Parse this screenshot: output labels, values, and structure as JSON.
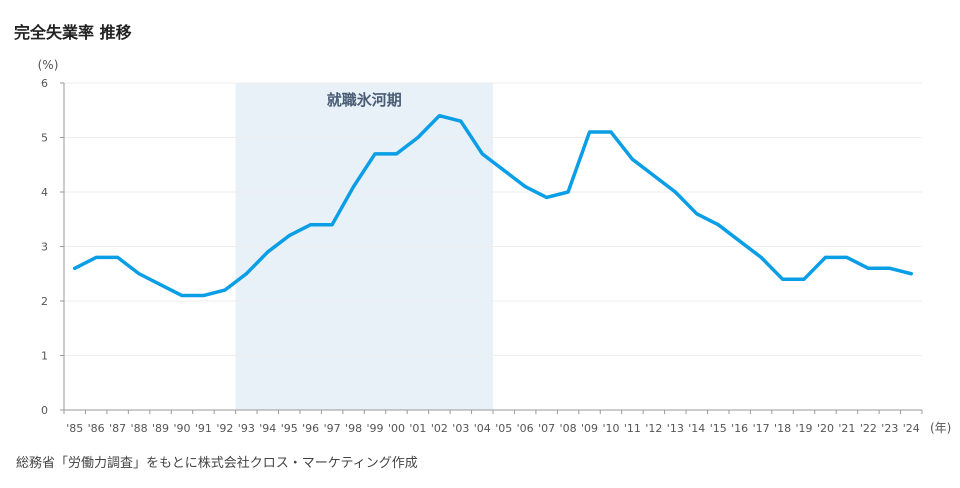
{
  "title": "完全失業率 推移",
  "source": "総務省「労働力調査」をもとに株式会社クロス・マーケティング作成",
  "chart_data": {
    "type": "line",
    "title": "完全失業率 推移",
    "ylabel": "(%)",
    "xlabel": "(年)",
    "ylim": [
      0,
      6
    ],
    "yticks": [
      "0",
      "1",
      "2",
      "3",
      "4",
      "5",
      "6"
    ],
    "grid": true,
    "categories": [
      "'85",
      "'86",
      "'87",
      "'88",
      "'89",
      "'90",
      "'91",
      "'92",
      "'93",
      "'94",
      "'95",
      "'96",
      "'97",
      "'98",
      "'99",
      "'00",
      "'01",
      "'02",
      "'03",
      "'04",
      "'05",
      "'06",
      "'07",
      "'08",
      "'09",
      "'10",
      "'11",
      "'12",
      "'13",
      "'14",
      "'15",
      "'16",
      "'17",
      "'18",
      "'19",
      "'20",
      "'21",
      "'22",
      "'23",
      "'24"
    ],
    "series": [
      {
        "name": "完全失業率",
        "color": "#0a9ee6",
        "values": [
          2.6,
          2.8,
          2.8,
          2.5,
          2.3,
          2.1,
          2.1,
          2.2,
          2.5,
          2.9,
          3.2,
          3.4,
          3.4,
          4.1,
          4.7,
          4.7,
          5.0,
          5.4,
          5.3,
          4.7,
          4.4,
          4.1,
          3.9,
          4.0,
          5.1,
          5.1,
          4.6,
          4.3,
          4.0,
          3.6,
          3.4,
          3.1,
          2.8,
          2.4,
          2.4,
          2.8,
          2.8,
          2.6,
          2.6,
          2.5
        ]
      }
    ],
    "annotations": [
      {
        "label": "就職氷河期",
        "from": "'93",
        "to": "'04",
        "color": "#e8f0f8"
      }
    ]
  }
}
